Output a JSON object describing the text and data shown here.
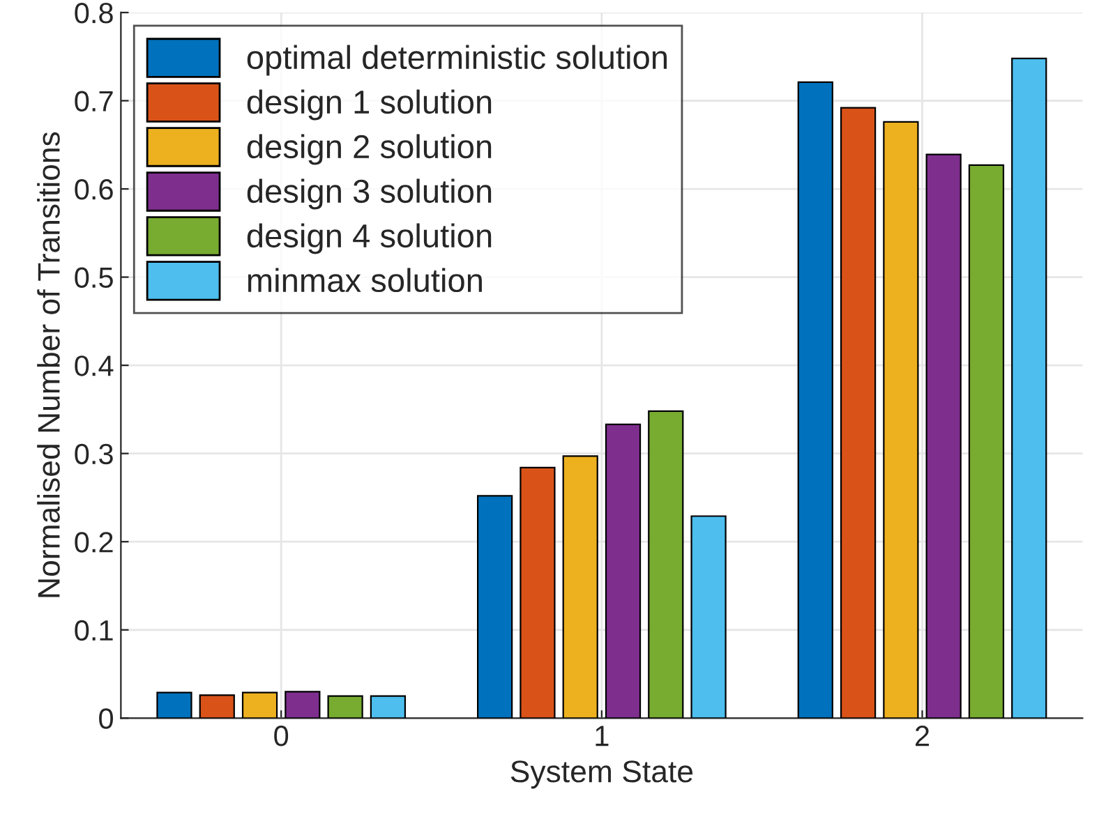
{
  "chart_data": {
    "type": "bar",
    "xlabel": "System State",
    "ylabel": "Normalised Number of Transitions",
    "categories": [
      "0",
      "1",
      "2"
    ],
    "series": [
      {
        "name": "optimal deterministic solution",
        "color": "#0072bd",
        "values": [
          0.029,
          0.252,
          0.721
        ]
      },
      {
        "name": "design 1 solution",
        "color": "#d95319",
        "values": [
          0.026,
          0.284,
          0.692
        ]
      },
      {
        "name": "design 2 solution",
        "color": "#edb120",
        "values": [
          0.029,
          0.297,
          0.676
        ]
      },
      {
        "name": "design 3 solution",
        "color": "#7e2f8e",
        "values": [
          0.03,
          0.333,
          0.639
        ]
      },
      {
        "name": "design 4 solution",
        "color": "#77ac30",
        "values": [
          0.025,
          0.348,
          0.627
        ]
      },
      {
        "name": "minmax solution",
        "color": "#4dbeee",
        "values": [
          0.025,
          0.229,
          0.748
        ]
      }
    ],
    "ylim": [
      0,
      0.8
    ],
    "yticks": [
      0,
      0.1,
      0.2,
      0.3,
      0.4,
      0.5,
      0.6,
      0.7,
      0.8
    ],
    "grid": true,
    "legend": "top left"
  }
}
